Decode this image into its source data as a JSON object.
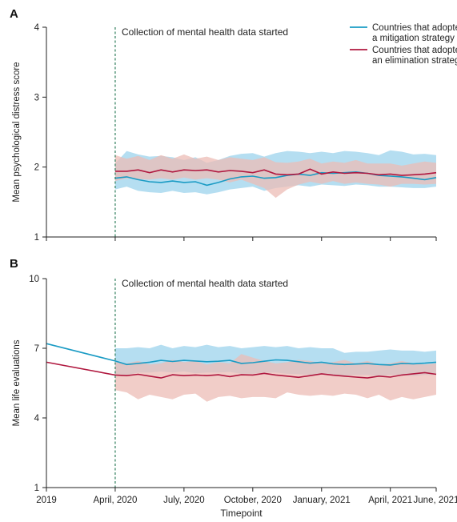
{
  "colors": {
    "mitigation": "#1a9bc4",
    "mitigation_band": "#a8d8ee",
    "elimination": "#b0183f",
    "elimination_band": "#ecbcb6",
    "overlap_band": "#c9aaa8",
    "marker_line": "#2e7d5a",
    "axis": "#222222"
  },
  "legend": {
    "mitigation": "Countries that adopted\na mitigation strategy",
    "elimination": "Countries that adopted\nan elimination strategy",
    "placement": "top-right"
  },
  "xaxis": {
    "label": "Timepoint",
    "ticks": [
      "2019",
      "April, 2020",
      "July, 2020",
      "October, 2020",
      "January, 2021",
      "April, 2021",
      "June, 2021"
    ],
    "tick_months": [
      0,
      3,
      6,
      9,
      12,
      15,
      17
    ],
    "range_months": [
      0,
      17
    ]
  },
  "chart_data": [
    {
      "panel": "A",
      "type": "line",
      "ylabel": "Mean psychological distress score",
      "ylim": [
        1,
        4
      ],
      "yticks": [
        1,
        2,
        3,
        4
      ],
      "annotation": "Collection of mental health data started",
      "annotation_month": 3,
      "grid": false,
      "series": [
        {
          "name": "Countries that adopted a mitigation strategy",
          "months": [
            3,
            3.5,
            4,
            4.5,
            5,
            5.5,
            6,
            6.5,
            7,
            7.5,
            8,
            8.5,
            9,
            9.5,
            10,
            10.5,
            11,
            11.5,
            12,
            12.5,
            13,
            13.5,
            14,
            14.5,
            15,
            15.5,
            16,
            16.5,
            17
          ],
          "values": [
            1.84,
            1.86,
            1.82,
            1.79,
            1.78,
            1.8,
            1.78,
            1.79,
            1.74,
            1.78,
            1.83,
            1.86,
            1.87,
            1.84,
            1.85,
            1.88,
            1.9,
            1.88,
            1.92,
            1.91,
            1.92,
            1.93,
            1.91,
            1.88,
            1.87,
            1.86,
            1.84,
            1.82,
            1.85
          ],
          "lower": [
            1.68,
            1.72,
            1.66,
            1.64,
            1.63,
            1.66,
            1.63,
            1.64,
            1.61,
            1.64,
            1.68,
            1.7,
            1.72,
            1.66,
            1.7,
            1.72,
            1.74,
            1.72,
            1.75,
            1.74,
            1.73,
            1.75,
            1.74,
            1.72,
            1.72,
            1.71,
            1.7,
            1.7,
            1.72
          ],
          "upper": [
            2.05,
            2.23,
            2.18,
            2.15,
            2.16,
            2.14,
            2.1,
            2.14,
            2.06,
            2.1,
            2.16,
            2.19,
            2.2,
            2.15,
            2.2,
            2.23,
            2.22,
            2.2,
            2.22,
            2.2,
            2.23,
            2.22,
            2.2,
            2.17,
            2.24,
            2.22,
            2.18,
            2.19,
            2.17
          ]
        },
        {
          "name": "Countries that adopted an elimination strategy",
          "months": [
            3,
            3.5,
            4,
            4.5,
            5,
            5.5,
            6,
            6.5,
            7,
            7.5,
            8,
            8.5,
            9,
            9.5,
            10,
            10.5,
            11,
            11.5,
            12,
            12.5,
            13,
            13.5,
            14,
            14.5,
            15,
            15.5,
            16,
            16.5,
            17
          ],
          "values": [
            1.94,
            1.94,
            1.96,
            1.92,
            1.96,
            1.93,
            1.96,
            1.95,
            1.96,
            1.93,
            1.95,
            1.94,
            1.92,
            1.96,
            1.9,
            1.89,
            1.9,
            1.97,
            1.9,
            1.93,
            1.91,
            1.92,
            1.91,
            1.89,
            1.9,
            1.88,
            1.89,
            1.9,
            1.92
          ],
          "lower": [
            1.8,
            1.84,
            1.83,
            1.82,
            1.84,
            1.82,
            1.85,
            1.82,
            1.84,
            1.82,
            1.78,
            1.82,
            1.76,
            1.7,
            1.56,
            1.68,
            1.75,
            1.79,
            1.76,
            1.8,
            1.76,
            1.78,
            1.76,
            1.75,
            1.72,
            1.76,
            1.76,
            1.75,
            1.76
          ],
          "upper": [
            2.17,
            2.12,
            2.16,
            2.1,
            2.17,
            2.12,
            2.18,
            2.12,
            2.15,
            2.1,
            2.14,
            2.12,
            2.1,
            2.14,
            2.07,
            2.06,
            2.08,
            2.12,
            2.05,
            2.08,
            2.06,
            2.1,
            2.05,
            2.05,
            2.05,
            2.02,
            2.05,
            2.08,
            2.06
          ]
        }
      ]
    },
    {
      "panel": "B",
      "type": "line",
      "ylabel": "Mean life evaluations",
      "ylim": [
        1,
        10
      ],
      "yticks": [
        1,
        4,
        7,
        10
      ],
      "annotation": "Collection of mental health data started",
      "annotation_month": 3,
      "grid": false,
      "series": [
        {
          "name": "Countries that adopted a mitigation strategy",
          "months": [
            0,
            3,
            3.5,
            4,
            4.5,
            5,
            5.5,
            6,
            6.5,
            7,
            7.5,
            8,
            8.5,
            9,
            9.5,
            10,
            10.5,
            11,
            11.5,
            12,
            12.5,
            13,
            13.5,
            14,
            14.5,
            15,
            15.5,
            16,
            16.5,
            17
          ],
          "values": [
            7.2,
            6.45,
            6.3,
            6.35,
            6.4,
            6.48,
            6.43,
            6.48,
            6.45,
            6.42,
            6.44,
            6.48,
            6.35,
            6.38,
            6.44,
            6.5,
            6.48,
            6.42,
            6.36,
            6.4,
            6.33,
            6.3,
            6.32,
            6.34,
            6.3,
            6.28,
            6.35,
            6.33,
            6.36,
            6.4
          ],
          "lower": [
            null,
            5.9,
            5.85,
            5.95,
            5.95,
            6.0,
            5.95,
            6.0,
            5.92,
            5.95,
            5.95,
            5.98,
            5.9,
            5.9,
            5.95,
            5.95,
            5.9,
            5.88,
            5.85,
            5.9,
            5.85,
            5.82,
            5.85,
            5.85,
            5.8,
            5.85,
            5.85,
            5.8,
            5.85,
            5.85
          ],
          "upper": [
            null,
            7.0,
            7.0,
            7.05,
            7.0,
            7.15,
            7.0,
            7.1,
            7.05,
            7.15,
            7.05,
            7.1,
            7.0,
            7.05,
            7.1,
            7.05,
            7.1,
            7.0,
            7.05,
            7.0,
            7.0,
            6.8,
            6.85,
            6.85,
            6.9,
            6.95,
            6.9,
            6.9,
            6.85,
            6.9
          ]
        },
        {
          "name": "Countries that adopted an elimination strategy",
          "months": [
            0,
            3,
            3.5,
            4,
            4.5,
            5,
            5.5,
            6,
            6.5,
            7,
            7.5,
            8,
            8.5,
            9,
            9.5,
            10,
            10.5,
            11,
            11.5,
            12,
            12.5,
            13,
            13.5,
            14,
            14.5,
            15,
            15.5,
            16,
            16.5,
            17
          ],
          "values": [
            6.4,
            5.85,
            5.82,
            5.88,
            5.8,
            5.72,
            5.86,
            5.82,
            5.85,
            5.82,
            5.86,
            5.78,
            5.86,
            5.85,
            5.92,
            5.85,
            5.8,
            5.75,
            5.82,
            5.9,
            5.84,
            5.8,
            5.76,
            5.72,
            5.8,
            5.76,
            5.85,
            5.9,
            5.95,
            5.88
          ],
          "lower": [
            null,
            5.2,
            5.1,
            4.8,
            5.0,
            4.9,
            4.8,
            5.0,
            5.05,
            4.7,
            4.9,
            4.95,
            4.85,
            4.9,
            4.9,
            4.85,
            5.1,
            5.0,
            4.95,
            5.0,
            4.95,
            5.05,
            5.0,
            4.85,
            5.0,
            4.75,
            4.9,
            4.8,
            4.9,
            5.0
          ],
          "upper": [
            null,
            6.4,
            6.35,
            6.45,
            6.3,
            6.35,
            6.5,
            6.4,
            6.45,
            6.3,
            6.4,
            6.35,
            6.75,
            6.6,
            6.45,
            6.35,
            6.4,
            6.5,
            6.45,
            6.35,
            6.4,
            6.5,
            6.35,
            6.45,
            6.3,
            6.35,
            6.45,
            6.35,
            6.3,
            6.35
          ]
        }
      ]
    }
  ]
}
